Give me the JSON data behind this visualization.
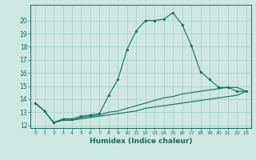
{
  "xlabel": "Humidex (Indice chaleur)",
  "background_color": "#cce8e0",
  "line_color": "#1a6b5a",
  "xlim": [
    -0.5,
    23.5
  ],
  "ylim": [
    11.8,
    21.2
  ],
  "yticks": [
    12,
    13,
    14,
    15,
    16,
    17,
    18,
    19,
    20
  ],
  "xticks": [
    0,
    1,
    2,
    3,
    4,
    5,
    6,
    7,
    8,
    9,
    10,
    11,
    12,
    13,
    14,
    15,
    16,
    17,
    18,
    19,
    20,
    21,
    22,
    23
  ],
  "series1_x": [
    0,
    1,
    2,
    3,
    4,
    5,
    6,
    7,
    8,
    9,
    10,
    11,
    12,
    13,
    14,
    15,
    16,
    17,
    18,
    19,
    20,
    21,
    22,
    23
  ],
  "series1_y": [
    13.7,
    13.1,
    12.2,
    12.5,
    12.5,
    12.7,
    12.8,
    12.9,
    14.3,
    15.5,
    17.8,
    19.2,
    20.0,
    20.0,
    20.1,
    20.6,
    19.7,
    18.1,
    16.1,
    15.5,
    14.9,
    14.9,
    14.6,
    14.6
  ],
  "series2_x": [
    0,
    1,
    2,
    3,
    4,
    5,
    6,
    7,
    8,
    9,
    10,
    11,
    12,
    13,
    14,
    15,
    16,
    17,
    18,
    19,
    20,
    21,
    22,
    23
  ],
  "series2_y": [
    13.7,
    13.1,
    12.2,
    12.4,
    12.4,
    12.6,
    12.7,
    12.8,
    13.0,
    13.1,
    13.3,
    13.5,
    13.7,
    13.9,
    14.1,
    14.2,
    14.4,
    14.5,
    14.6,
    14.7,
    14.8,
    14.9,
    14.9,
    14.6
  ],
  "series3_x": [
    0,
    1,
    2,
    3,
    4,
    5,
    6,
    7,
    8,
    9,
    10,
    11,
    12,
    13,
    14,
    15,
    16,
    17,
    18,
    19,
    20,
    21,
    22,
    23
  ],
  "series3_y": [
    13.7,
    13.1,
    12.2,
    12.4,
    12.4,
    12.5,
    12.6,
    12.7,
    12.8,
    12.9,
    13.0,
    13.1,
    13.3,
    13.4,
    13.5,
    13.6,
    13.7,
    13.8,
    13.9,
    14.0,
    14.1,
    14.2,
    14.3,
    14.6
  ]
}
